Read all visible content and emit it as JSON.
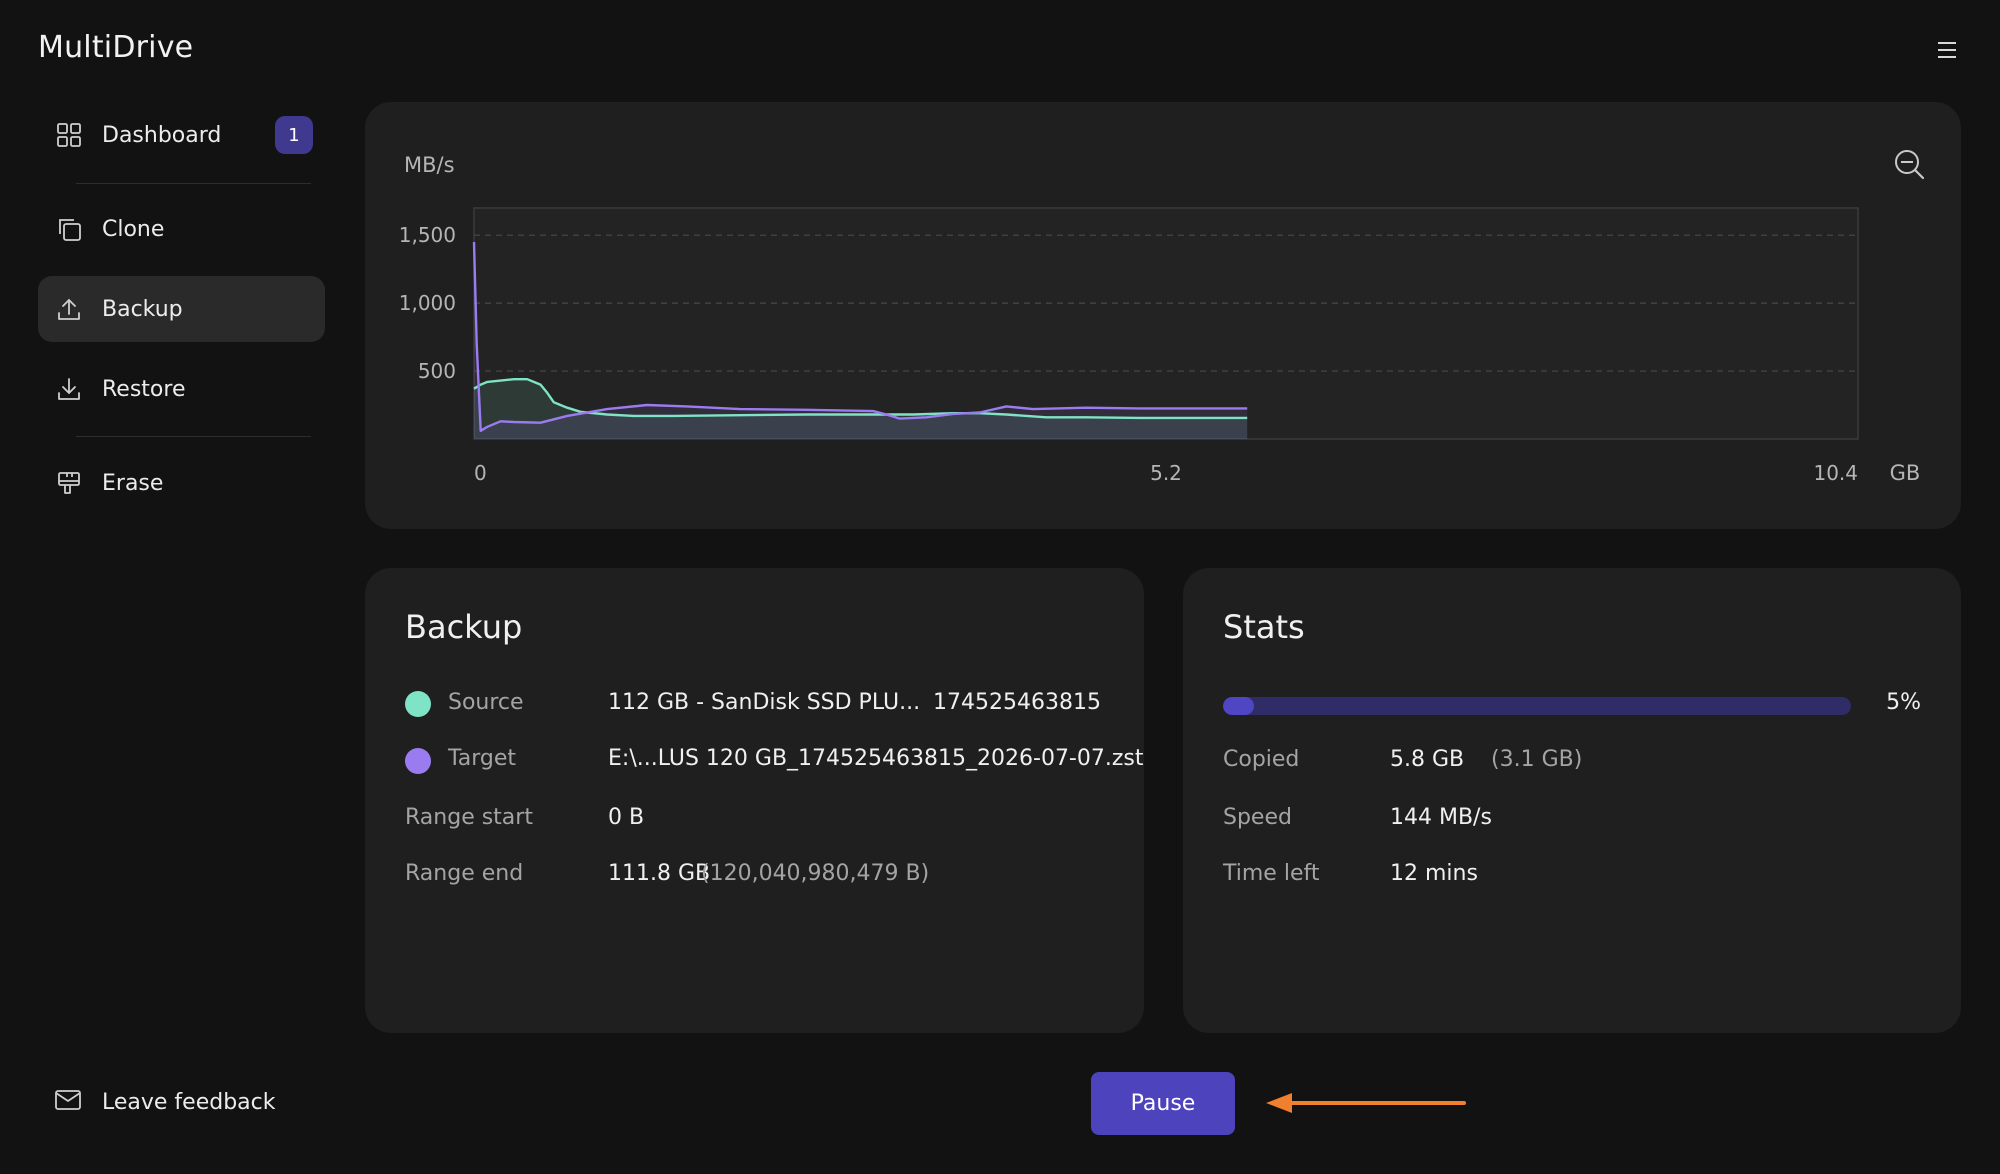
{
  "app": {
    "title": "MultiDrive"
  },
  "sidebar": {
    "items": [
      {
        "label": "Dashboard",
        "icon": "grid-icon",
        "badge": "1",
        "active": false
      },
      {
        "label": "Clone",
        "icon": "copy-icon",
        "active": false
      },
      {
        "label": "Backup",
        "icon": "upload-icon",
        "active": true
      },
      {
        "label": "Restore",
        "icon": "download-icon",
        "active": false
      },
      {
        "label": "Erase",
        "icon": "eraser-icon",
        "active": false
      }
    ],
    "feedback_label": "Leave feedback"
  },
  "chart_data": {
    "type": "line",
    "ylabel": "MB/s",
    "xunit": "GB",
    "x_ticks": [
      "0",
      "5.2",
      "10.4"
    ],
    "y_ticks": [
      "1,500",
      "1,000",
      "500"
    ],
    "xlim": [
      0,
      10.4
    ],
    "ylim": [
      0,
      1700
    ],
    "grid": true,
    "series": [
      {
        "color": "#7fe3c6",
        "x": [
          0,
          0.05,
          0.1,
          0.2,
          0.3,
          0.4,
          0.5,
          0.55,
          0.6,
          0.7,
          0.8,
          1.0,
          1.2,
          1.5,
          2.0,
          2.5,
          3.0,
          3.2,
          3.3,
          3.6,
          3.8,
          4.0,
          4.3,
          4.6,
          5.0,
          5.5,
          5.81
        ],
        "y": [
          370,
          400,
          420,
          430,
          440,
          440,
          400,
          340,
          270,
          230,
          200,
          180,
          170,
          170,
          175,
          180,
          180,
          180,
          180,
          190,
          190,
          180,
          160,
          160,
          155,
          155,
          155
        ]
      },
      {
        "color": "#9a7cf0",
        "x": [
          0,
          0.02,
          0.05,
          0.1,
          0.2,
          0.3,
          0.5,
          0.7,
          1.0,
          1.3,
          1.6,
          2.0,
          2.5,
          3.0,
          3.1,
          3.2,
          3.4,
          3.6,
          3.8,
          4.0,
          4.2,
          4.6,
          5.0,
          5.5,
          5.81
        ],
        "y": [
          1450,
          700,
          60,
          90,
          130,
          125,
          120,
          170,
          220,
          250,
          240,
          220,
          215,
          205,
          180,
          150,
          160,
          185,
          195,
          240,
          220,
          230,
          225,
          225,
          225
        ]
      }
    ]
  },
  "chart_colors": {
    "accent": "#4c43bd"
  },
  "backup": {
    "title": "Backup",
    "source_label": "Source",
    "source_value": "112 GB - SanDisk SSD PLU...",
    "source_serial": "174525463815",
    "source_color": "#7fe3c6",
    "target_label": "Target",
    "target_value": "E:\\...LUS 120 GB_174525463815_2026-07-07.zst",
    "target_color": "#9a7cf0",
    "range_start_label": "Range start",
    "range_start_value": "0 B",
    "range_end_label": "Range end",
    "range_end_value": "111.8 GB",
    "range_end_bytes": "(120,040,980,479 B)"
  },
  "stats": {
    "title": "Stats",
    "progress_fraction": 0.05,
    "progress_label": "5%",
    "copied_label": "Copied",
    "copied_value": "5.8 GB",
    "copied_extra": "(3.1 GB)",
    "speed_label": "Speed",
    "speed_value": "144 MB/s",
    "time_left_label": "Time left",
    "time_left_value": "12 mins"
  },
  "actions": {
    "pause_label": "Pause"
  }
}
